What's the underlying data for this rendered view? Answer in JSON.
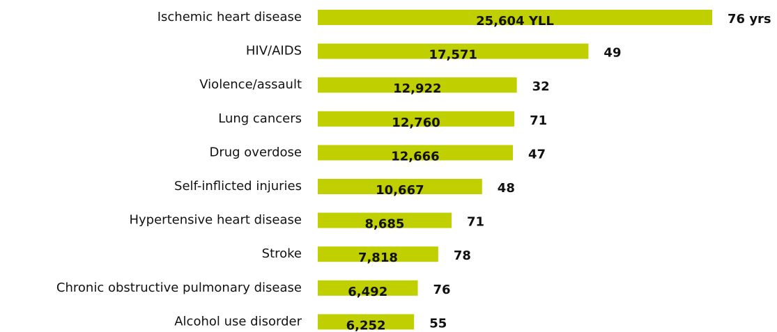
{
  "chart_data": {
    "type": "bar",
    "orientation": "horizontal",
    "categories": [
      "Ischemic heart disease",
      "HIV/AIDS",
      "Violence/assault",
      "Lung cancers",
      "Drug overdose",
      "Self-inflicted injuries",
      "Hypertensive heart disease",
      "Stroke",
      "Chronic obstructive pulmonary disease",
      "Alcohol use disorder"
    ],
    "values": [
      25604,
      17571,
      12922,
      12760,
      12666,
      10667,
      8685,
      7818,
      6492,
      6252
    ],
    "value_labels": [
      "25,604 YLL",
      "17,571",
      "12,922",
      "12,760",
      "12,666",
      "10,667",
      "8,685",
      "7,818",
      "6,492",
      "6,252"
    ],
    "secondary_values": [
      76,
      49,
      32,
      71,
      47,
      48,
      71,
      78,
      76,
      55
    ],
    "secondary_value_labels": [
      "76 yrs",
      "49",
      "32",
      "71",
      "47",
      "48",
      "71",
      "78",
      "76",
      "55"
    ],
    "color": "#bfcf00"
  }
}
